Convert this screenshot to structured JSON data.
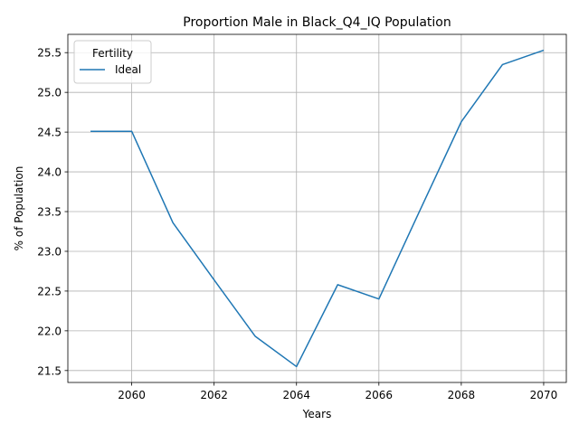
{
  "chart_data": {
    "type": "line",
    "title": "Proportion Male in Black_Q4_IQ Population",
    "xlabel": "Years",
    "ylabel": "% of Population",
    "xlim": [
      2058.45,
      2070.55
    ],
    "ylim": [
      21.35,
      25.73
    ],
    "xticks": [
      2060,
      2062,
      2064,
      2066,
      2068,
      2070
    ],
    "yticks": [
      21.5,
      22.0,
      22.5,
      23.0,
      23.5,
      24.0,
      24.5,
      25.0,
      25.5
    ],
    "xtick_labels": [
      "2060",
      "2062",
      "2064",
      "2066",
      "2068",
      "2070"
    ],
    "ytick_labels": [
      "21.5",
      "22.0",
      "22.5",
      "23.0",
      "23.5",
      "24.0",
      "24.5",
      "25.0",
      "25.5"
    ],
    "grid": true,
    "legend": {
      "title": "Fertility",
      "placement": "top-left"
    },
    "series": [
      {
        "name": "Ideal",
        "color": "#1f77b4",
        "x": [
          2059,
          2060,
          2061,
          2062,
          2063,
          2064,
          2065,
          2066,
          2067,
          2068,
          2069,
          2070
        ],
        "values": [
          24.51,
          24.51,
          23.36,
          22.64,
          21.93,
          21.55,
          22.58,
          22.4,
          23.52,
          24.63,
          25.35,
          25.53
        ]
      }
    ]
  }
}
